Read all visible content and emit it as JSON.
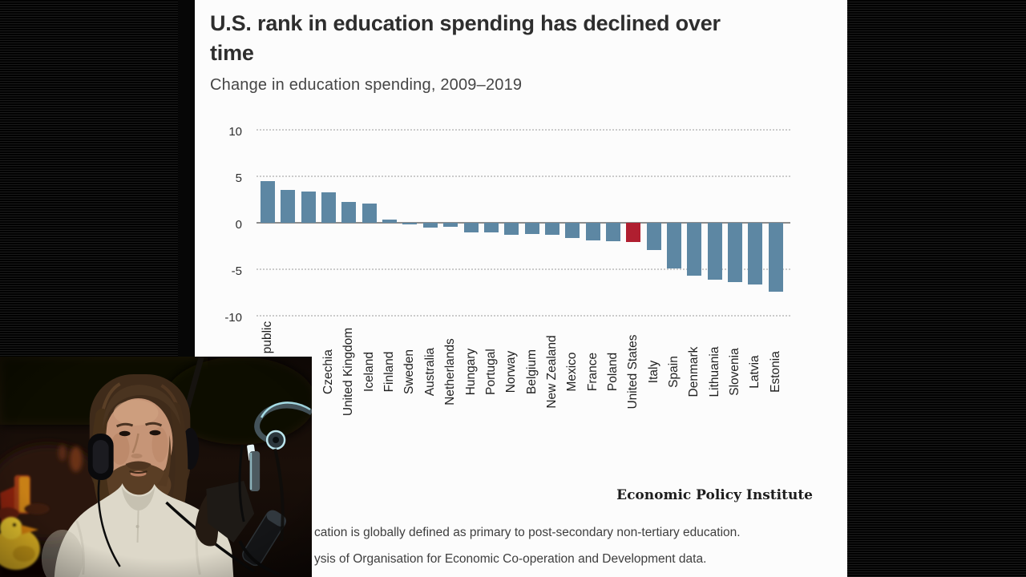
{
  "frame": {
    "background_color": "#0b0b0b",
    "card_color": "#fcfcfc"
  },
  "card": {
    "title_lines": [
      "U.S. rank in education spending has declined over",
      "time"
    ],
    "subtitle": "Change in education spending, 2009–2019",
    "attribution": "Economic Policy Institute",
    "note_fragments": [
      "cation is globally defined as primary to post-secondary non-tertiary education.",
      "ysis of Organisation for Economic Co-operation and Development data."
    ]
  },
  "chart_data": {
    "type": "bar",
    "title": "U.S. rank in education spending has declined over time",
    "subtitle": "Change in education spending, 2009–2019",
    "xlabel": "",
    "ylabel": "",
    "ylim": [
      -10,
      10
    ],
    "yticks": [
      10,
      5,
      0,
      -5,
      -10
    ],
    "grid": "dotted-horizontal",
    "legend": "none",
    "bar_color": "#5d87a3",
    "highlight_color": "#b01f30",
    "highlight_index": 18,
    "highlight_category": "United States",
    "categories": [
      "public",
      "",
      "",
      "Czechia",
      "United Kingdom",
      "Iceland",
      "Finland",
      "Sweden",
      "Australia",
      "Netherlands",
      "Hungary",
      "Portugal",
      "Norway",
      "Belgium",
      "New Zealand",
      "Mexico",
      "France",
      "Poland",
      "United States",
      "Italy",
      "Spain",
      "Denmark",
      "Lithuania",
      "Slovenia",
      "Latvia",
      "Estonia"
    ],
    "values": [
      4.5,
      3.5,
      3.4,
      3.3,
      2.2,
      2.1,
      0.35,
      -0.15,
      -0.5,
      -0.45,
      -1.05,
      -1.0,
      -1.25,
      -1.2,
      -1.25,
      -1.65,
      -1.9,
      -1.95,
      -2.1,
      -2.9,
      -4.9,
      -5.7,
      -6.1,
      -6.4,
      -6.6,
      -7.4
    ]
  }
}
